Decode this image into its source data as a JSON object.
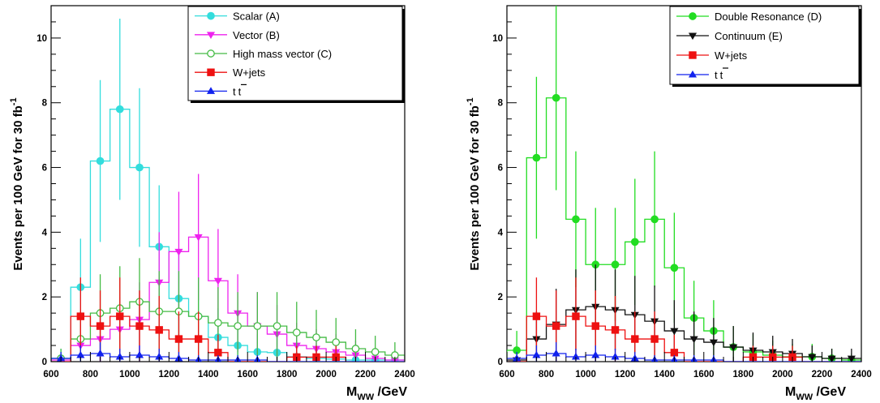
{
  "chart_data": [
    {
      "type": "histogram",
      "bin_edges": [
        600,
        700,
        800,
        900,
        1000,
        1100,
        1200,
        1300,
        1400,
        1500,
        1600,
        1700,
        1800,
        1900,
        2000,
        2100,
        2200,
        2300,
        2400
      ],
      "xlim": [
        600,
        2400
      ],
      "ylim": [
        0,
        11
      ],
      "xticks": [
        600,
        800,
        1000,
        1200,
        1400,
        1600,
        1800,
        2000,
        2200,
        2400
      ],
      "yticks": [
        0,
        2,
        4,
        6,
        8,
        10
      ],
      "xlabel": {
        "main": "M",
        "sub": "WW",
        "rest": " /GeV"
      },
      "ylabel": {
        "main": "Events per 100 GeV for 30 fb",
        "sup": "-1"
      },
      "legend_position": "top-right",
      "series": [
        {
          "name": "Scalar (A)",
          "color": "#33dddd",
          "marker": "circle",
          "filled": true,
          "legend_label": "Scalar (A)",
          "values": [
            0.1,
            2.3,
            6.2,
            7.8,
            6.0,
            3.55,
            1.95,
            1.4,
            0.75,
            0.5,
            0.3,
            0.28,
            0.15,
            0.1,
            0.08,
            0.05,
            0.05,
            0.05
          ],
          "errors": [
            0.3,
            1.5,
            2.5,
            2.8,
            2.45,
            1.9,
            1.4,
            1.2,
            0.9,
            0.7,
            0.55,
            0.5,
            0.4,
            0.3,
            0.3,
            0.2,
            0.2,
            0.2
          ]
        },
        {
          "name": "Vector (B)",
          "color": "#ee22ee",
          "marker": "triangle-down",
          "filled": true,
          "legend_label": "Vector (B)",
          "values": [
            0.05,
            0.5,
            0.7,
            1.0,
            1.3,
            2.45,
            3.4,
            3.85,
            2.5,
            1.5,
            1.1,
            0.85,
            0.5,
            0.4,
            0.3,
            0.2,
            0.1,
            0.05
          ],
          "errors": [
            0.2,
            0.7,
            0.85,
            1.0,
            1.15,
            1.55,
            1.85,
            1.95,
            1.6,
            1.2,
            1.05,
            0.9,
            0.7,
            0.6,
            0.55,
            0.45,
            0.3,
            0.2
          ]
        },
        {
          "name": "High mass vector (C)",
          "color": "#44bb44",
          "marker": "circle",
          "filled": false,
          "legend_label": "High mass vector (C)",
          "values": [
            0.1,
            0.7,
            1.5,
            1.65,
            1.85,
            1.55,
            1.55,
            1.4,
            1.2,
            1.1,
            1.1,
            1.1,
            0.9,
            0.75,
            0.6,
            0.4,
            0.3,
            0.2
          ],
          "errors": [
            0.3,
            0.85,
            1.2,
            1.3,
            1.35,
            1.25,
            1.25,
            1.2,
            1.1,
            1.05,
            1.05,
            1.05,
            0.95,
            0.85,
            0.75,
            0.6,
            0.5,
            0.4
          ]
        },
        {
          "name": "W+jets",
          "color": "#ee1111",
          "marker": "square",
          "filled": true,
          "legend_label": "W+jets",
          "values": [
            0,
            1.4,
            1.1,
            1.4,
            1.1,
            0.98,
            0.7,
            0.7,
            0.28,
            0,
            0,
            0,
            0.14,
            0.14,
            0.14,
            0,
            0,
            0
          ],
          "errors": [
            0,
            1.2,
            1.1,
            1.2,
            1.1,
            1.05,
            0.85,
            0.85,
            0.55,
            0,
            0,
            0,
            0.35,
            0.35,
            0.35,
            0,
            0,
            0
          ]
        },
        {
          "name": "tt",
          "color": "#1122ee",
          "marker": "triangle-up",
          "filled": true,
          "legend_label": "t",
          "legend_label2": "t",
          "values": [
            0.1,
            0.2,
            0.25,
            0.15,
            0.2,
            0.15,
            0.1,
            0.05,
            0.05,
            0.05,
            0.05,
            0,
            0,
            0,
            0,
            0,
            0,
            0
          ],
          "errors": [
            0.2,
            0.3,
            0.35,
            0.25,
            0.3,
            0.25,
            0.2,
            0.15,
            0.15,
            0.15,
            0.15,
            0,
            0,
            0,
            0,
            0,
            0,
            0
          ]
        }
      ]
    },
    {
      "type": "histogram",
      "bin_edges": [
        600,
        700,
        800,
        900,
        1000,
        1100,
        1200,
        1300,
        1400,
        1500,
        1600,
        1700,
        1800,
        1900,
        2000,
        2100,
        2200,
        2300,
        2400
      ],
      "xlim": [
        600,
        2400
      ],
      "ylim": [
        0,
        11
      ],
      "xticks": [
        600,
        800,
        1000,
        1200,
        1400,
        1600,
        1800,
        2000,
        2200,
        2400
      ],
      "yticks": [
        0,
        2,
        4,
        6,
        8,
        10
      ],
      "xlabel": {
        "main": "M",
        "sub": "WW",
        "rest": " /GeV"
      },
      "ylabel": {
        "main": "Events per 100 GeV for 30 fb",
        "sup": "-1"
      },
      "legend_position": "top-right",
      "series": [
        {
          "name": "Double Resonance (D)",
          "color": "#22dd22",
          "marker": "circle",
          "filled": true,
          "legend_label": "Double Resonance (D)",
          "values": [
            0.35,
            6.3,
            8.15,
            4.4,
            3.0,
            3.0,
            3.7,
            4.4,
            2.9,
            1.35,
            0.95,
            0.45,
            0.3,
            0.2,
            0.15,
            0.15,
            0.1,
            0.05
          ],
          "errors": [
            0.6,
            2.5,
            2.85,
            2.1,
            1.75,
            1.75,
            1.95,
            2.1,
            1.7,
            1.15,
            0.95,
            0.65,
            0.55,
            0.45,
            0.4,
            0.4,
            0.3,
            0.2
          ]
        },
        {
          "name": "Continuum (E)",
          "color": "#111111",
          "marker": "triangle-down",
          "filled": true,
          "legend_label": "Continuum (E)",
          "values": [
            0.05,
            0.7,
            1.15,
            1.6,
            1.7,
            1.6,
            1.45,
            1.25,
            0.95,
            0.7,
            0.6,
            0.45,
            0.35,
            0.3,
            0.25,
            0.15,
            0.1,
            0.1
          ],
          "errors": [
            0.2,
            0.85,
            1.1,
            1.25,
            1.3,
            1.25,
            1.2,
            1.1,
            0.95,
            0.85,
            0.75,
            0.65,
            0.55,
            0.5,
            0.45,
            0.35,
            0.3,
            0.3
          ]
        },
        {
          "name": "W+jets",
          "color": "#ee1111",
          "marker": "square",
          "filled": true,
          "legend_label": "W+jets",
          "values": [
            0,
            1.4,
            1.1,
            1.4,
            1.1,
            0.98,
            0.7,
            0.7,
            0.28,
            0,
            0,
            0,
            0.14,
            0.14,
            0.14,
            0,
            0,
            0
          ],
          "errors": [
            0,
            1.2,
            1.1,
            1.2,
            1.1,
            1.05,
            0.85,
            0.85,
            0.55,
            0,
            0,
            0,
            0.35,
            0.35,
            0.35,
            0,
            0,
            0
          ]
        },
        {
          "name": "tt",
          "color": "#1122ee",
          "marker": "triangle-up",
          "filled": true,
          "legend_label": "t",
          "legend_label2": "t",
          "values": [
            0.1,
            0.2,
            0.25,
            0.15,
            0.2,
            0.15,
            0.1,
            0.05,
            0.05,
            0.05,
            0.05,
            0,
            0,
            0,
            0,
            0,
            0,
            0
          ],
          "errors": [
            0.2,
            0.3,
            0.35,
            0.25,
            0.3,
            0.25,
            0.2,
            0.15,
            0.15,
            0.15,
            0.15,
            0,
            0,
            0,
            0,
            0,
            0,
            0
          ]
        }
      ]
    }
  ]
}
